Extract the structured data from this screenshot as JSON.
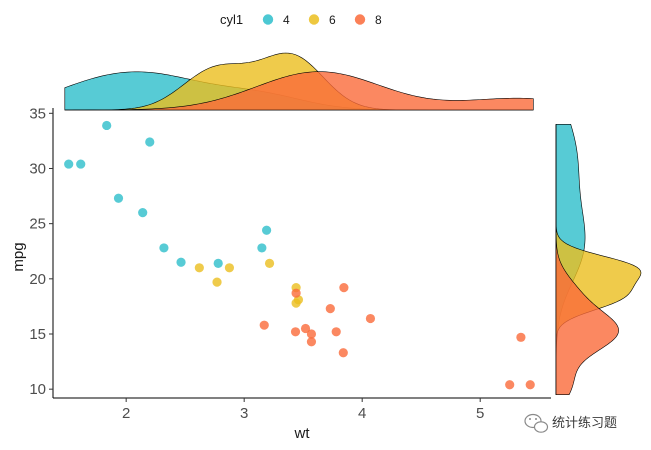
{
  "chart_data": {
    "type": "scatter",
    "title": "",
    "xlabel": "wt",
    "ylabel": "mpg",
    "xlim": [
      1.38,
      5.6
    ],
    "ylim": [
      9.2,
      35.3
    ],
    "x_ticks": [
      2,
      3,
      4,
      5
    ],
    "y_ticks": [
      10,
      15,
      20,
      25,
      30,
      35
    ],
    "grid": false,
    "legend": {
      "title": "cyl1",
      "placement": "top",
      "entries": [
        {
          "label": "4",
          "color": "#2DBECB"
        },
        {
          "label": "6",
          "color": "#EBBE1E"
        },
        {
          "label": "8",
          "color": "#FA6A3A"
        }
      ]
    },
    "series": [
      {
        "name": "4",
        "color": "#2DBECB",
        "points": [
          [
            1.513,
            30.4
          ],
          [
            1.615,
            30.4
          ],
          [
            1.835,
            33.9
          ],
          [
            1.935,
            27.3
          ],
          [
            2.14,
            26.0
          ],
          [
            2.2,
            32.4
          ],
          [
            2.32,
            22.8
          ],
          [
            2.465,
            21.5
          ],
          [
            2.78,
            21.4
          ],
          [
            3.15,
            22.8
          ],
          [
            3.19,
            24.4
          ]
        ]
      },
      {
        "name": "6",
        "color": "#EBBE1E",
        "points": [
          [
            2.62,
            21.0
          ],
          [
            2.77,
            19.7
          ],
          [
            2.875,
            21.0
          ],
          [
            3.215,
            21.4
          ],
          [
            3.44,
            19.2
          ],
          [
            3.44,
            17.8
          ],
          [
            3.46,
            18.1
          ]
        ]
      },
      {
        "name": "8",
        "color": "#FA6A3A",
        "points": [
          [
            3.17,
            15.8
          ],
          [
            3.435,
            15.2
          ],
          [
            3.44,
            18.7
          ],
          [
            3.52,
            15.5
          ],
          [
            3.57,
            14.3
          ],
          [
            3.57,
            15.0
          ],
          [
            3.73,
            17.3
          ],
          [
            3.78,
            15.2
          ],
          [
            3.84,
            13.3
          ],
          [
            3.845,
            19.2
          ],
          [
            4.07,
            16.4
          ],
          [
            5.25,
            10.4
          ],
          [
            5.345,
            14.7
          ],
          [
            5.424,
            10.4
          ]
        ]
      }
    ],
    "marginal_densities": true
  },
  "watermark": {
    "text": "统计练习题"
  }
}
